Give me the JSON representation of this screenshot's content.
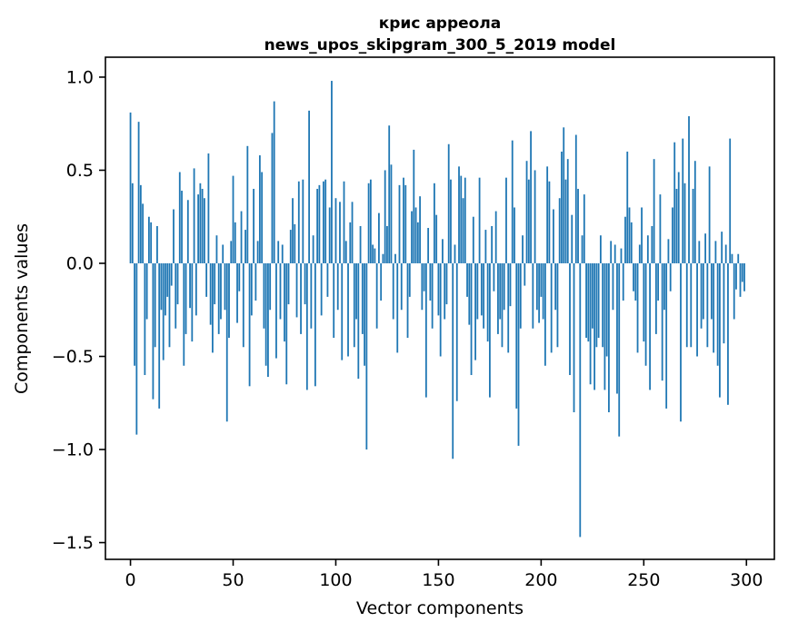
{
  "chart_data": {
    "type": "bar",
    "title_line1": "крис арреола",
    "title_line2": "news_upos_skipgram_300_5_2019 model",
    "xlabel": "Vector components",
    "ylabel": "Components values",
    "bar_color": "#1f77b4",
    "spine_color": "#000000",
    "background_color": "#ffffff",
    "n_components": 300,
    "xlim": [
      -12.2,
      313.6
    ],
    "ylim": [
      -1.59,
      1.107
    ],
    "grid": false,
    "legend": "none",
    "x_ticks": [
      {
        "value": 0,
        "label": "0"
      },
      {
        "value": 50,
        "label": "50"
      },
      {
        "value": 100,
        "label": "100"
      },
      {
        "value": 150,
        "label": "150"
      },
      {
        "value": 200,
        "label": "200"
      },
      {
        "value": 250,
        "label": "250"
      },
      {
        "value": 300,
        "label": "300"
      }
    ],
    "y_ticks": [
      {
        "value": 1.0,
        "label": "1.0"
      },
      {
        "value": 0.5,
        "label": "0.5"
      },
      {
        "value": 0.0,
        "label": "0.0"
      },
      {
        "value": -0.5,
        "label": "−0.5"
      },
      {
        "value": -1.0,
        "label": "−1.0"
      },
      {
        "value": -1.5,
        "label": "−1.5"
      }
    ],
    "values": [
      0.81,
      0.43,
      -0.55,
      -0.92,
      0.76,
      0.42,
      0.32,
      -0.6,
      -0.3,
      0.25,
      0.22,
      -0.73,
      -0.45,
      0.2,
      -0.78,
      -0.25,
      -0.52,
      -0.28,
      -0.18,
      -0.45,
      -0.12,
      0.29,
      -0.35,
      -0.22,
      0.49,
      0.39,
      -0.55,
      -0.38,
      0.34,
      -0.24,
      -0.42,
      0.51,
      -0.28,
      0.37,
      0.43,
      0.4,
      0.35,
      -0.18,
      0.59,
      -0.33,
      -0.48,
      -0.22,
      0.15,
      -0.38,
      -0.3,
      0.1,
      -0.25,
      -0.85,
      -0.4,
      0.12,
      0.47,
      0.22,
      -0.32,
      -0.15,
      0.28,
      -0.45,
      0.18,
      0.63,
      -0.66,
      -0.28,
      0.4,
      -0.2,
      0.12,
      0.58,
      0.49,
      -0.35,
      -0.55,
      -0.61,
      -0.25,
      0.7,
      0.87,
      -0.51,
      0.12,
      -0.3,
      0.1,
      -0.42,
      -0.65,
      -0.22,
      0.18,
      0.35,
      0.21,
      -0.29,
      0.44,
      -0.38,
      0.45,
      -0.22,
      -0.68,
      0.82,
      -0.35,
      0.15,
      -0.66,
      0.4,
      0.42,
      -0.28,
      0.44,
      0.45,
      -0.18,
      0.3,
      0.98,
      -0.4,
      0.35,
      -0.25,
      0.33,
      -0.52,
      0.44,
      0.12,
      -0.5,
      0.22,
      0.33,
      -0.45,
      -0.3,
      -0.62,
      0.2,
      -0.38,
      -0.55,
      -1.0,
      0.43,
      0.45,
      0.1,
      0.08,
      -0.35,
      0.27,
      -0.2,
      0.05,
      0.5,
      0.2,
      0.74,
      0.53,
      -0.3,
      0.05,
      -0.48,
      0.42,
      -0.25,
      0.46,
      0.42,
      -0.4,
      -0.18,
      0.28,
      0.61,
      0.3,
      0.22,
      0.36,
      -0.25,
      -0.15,
      -0.72,
      0.19,
      -0.2,
      -0.35,
      0.43,
      0.26,
      -0.28,
      -0.5,
      0.13,
      -0.3,
      -0.22,
      0.64,
      0.45,
      -1.05,
      0.1,
      -0.74,
      0.52,
      0.47,
      0.35,
      0.46,
      -0.18,
      -0.33,
      -0.6,
      0.25,
      -0.52,
      -0.3,
      0.46,
      -0.28,
      -0.35,
      0.18,
      -0.42,
      -0.72,
      0.2,
      -0.15,
      0.28,
      -0.38,
      -0.3,
      -0.45,
      -0.25,
      0.46,
      -0.48,
      -0.23,
      0.66,
      0.3,
      -0.78,
      -0.98,
      -0.35,
      0.15,
      -0.12,
      0.55,
      0.45,
      0.71,
      -0.35,
      0.5,
      -0.25,
      -0.32,
      -0.18,
      -0.3,
      -0.55,
      0.52,
      0.44,
      -0.48,
      0.29,
      -0.25,
      -0.45,
      0.35,
      0.6,
      0.73,
      0.45,
      0.56,
      -0.6,
      0.26,
      -0.8,
      0.69,
      0.4,
      -1.47,
      0.15,
      0.37,
      -0.4,
      -0.42,
      -0.65,
      -0.35,
      -0.68,
      -0.45,
      -0.4,
      0.15,
      -0.45,
      -0.68,
      -0.5,
      -0.8,
      0.12,
      -0.25,
      0.1,
      -0.7,
      -0.93,
      0.08,
      -0.2,
      0.25,
      0.6,
      0.3,
      0.22,
      -0.15,
      -0.2,
      -0.48,
      0.1,
      0.3,
      -0.42,
      -0.55,
      0.15,
      -0.68,
      0.2,
      0.56,
      -0.38,
      -0.2,
      0.37,
      -0.63,
      -0.25,
      -0.78,
      0.13,
      -0.15,
      0.3,
      0.65,
      0.4,
      0.49,
      -0.85,
      0.67,
      0.43,
      -0.45,
      0.79,
      -0.45,
      0.4,
      0.55,
      -0.5,
      0.12,
      -0.35,
      -0.3,
      0.16,
      -0.45,
      0.52,
      -0.3,
      -0.48,
      0.12,
      -0.55,
      -0.72,
      0.17,
      -0.43,
      0.1,
      -0.76,
      0.67,
      0.05,
      -0.3,
      -0.14,
      0.05,
      -0.18,
      -0.1,
      -0.15
    ]
  }
}
